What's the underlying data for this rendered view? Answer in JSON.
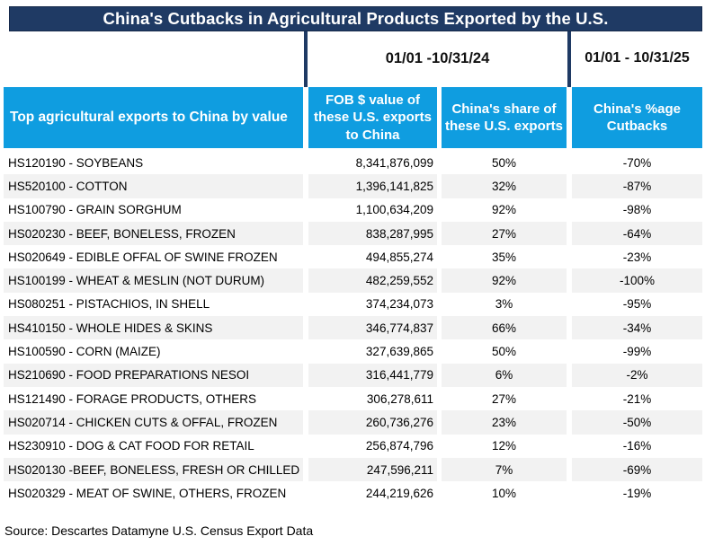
{
  "title": "China's Cutbacks in Agricultural Products Exported by the U.S.",
  "periods": {
    "period_2024": "01/01 -10/31/24",
    "period_2025": "01/01 - 10/31/25"
  },
  "source": "Source: Descartes Datamyne U.S. Census Export Data",
  "colors": {
    "title_navy": "#1F3A64",
    "header_blue": "#0F9DE0",
    "stripe_gray": "#F2F2F2",
    "text_black": "#000000",
    "header_text_white": "#FFFFFF"
  },
  "chart_data": {
    "type": "table",
    "title": "China's Cutbacks in Agricultural Products Exported by the U.S.",
    "column_headers": [
      "Top agricultural exports to China by value",
      "FOB $ value of these U.S. exports to China",
      "China's share of these U.S. exports",
      "China's %age Cutbacks"
    ],
    "period_note_columns_2_3": "01/01 -10/31/24",
    "period_note_column_4": "01/01 - 10/31/25",
    "rows": [
      {
        "product": "HS120190 - SOYBEANS",
        "value": "8,341,876,099",
        "share": "50%",
        "cutback": "-70%"
      },
      {
        "product": "HS520100 - COTTON",
        "value": "1,396,141,825",
        "share": "32%",
        "cutback": "-87%"
      },
      {
        "product": "HS100790 - GRAIN SORGHUM",
        "value": "1,100,634,209",
        "share": "92%",
        "cutback": "-98%"
      },
      {
        "product": "HS020230 - BEEF, BONELESS, FROZEN",
        "value": "838,287,995",
        "share": "27%",
        "cutback": "-64%"
      },
      {
        "product": "HS020649 - EDIBLE OFFAL OF SWINE FROZEN",
        "value": "494,855,274",
        "share": "35%",
        "cutback": "-23%"
      },
      {
        "product": "HS100199 - WHEAT & MESLIN (NOT DURUM)",
        "value": "482,259,552",
        "share": "92%",
        "cutback": "-100%"
      },
      {
        "product": "HS080251 - PISTACHIOS, IN SHELL",
        "value": "374,234,073",
        "share": "3%",
        "cutback": "-95%"
      },
      {
        "product": "HS410150 - WHOLE HIDES & SKINS",
        "value": "346,774,837",
        "share": "66%",
        "cutback": "-34%"
      },
      {
        "product": "HS100590 - CORN (MAIZE)",
        "value": "327,639,865",
        "share": "50%",
        "cutback": "-99%"
      },
      {
        "product": "HS210690 - FOOD PREPARATIONS NESOI",
        "value": "316,441,779",
        "share": "6%",
        "cutback": "-2%"
      },
      {
        "product": "HS121490 - FORAGE PRODUCTS, OTHERS",
        "value": "306,278,611",
        "share": "27%",
        "cutback": "-21%"
      },
      {
        "product": "HS020714 - CHICKEN CUTS &  OFFAL, FROZEN",
        "value": "260,736,276",
        "share": "23%",
        "cutback": "-50%"
      },
      {
        "product": "HS230910 - DOG & CAT FOOD FOR RETAIL",
        "value": "256,874,796",
        "share": "12%",
        "cutback": "-16%"
      },
      {
        "product": "HS020130 -BEEF, BONELESS, FRESH OR CHILLED",
        "value": "247,596,211",
        "share": "7%",
        "cutback": "-69%"
      },
      {
        "product": "HS020329 - MEAT OF SWINE, OTHERS, FROZEN",
        "value": "244,219,626",
        "share": "10%",
        "cutback": "-19%"
      }
    ]
  }
}
